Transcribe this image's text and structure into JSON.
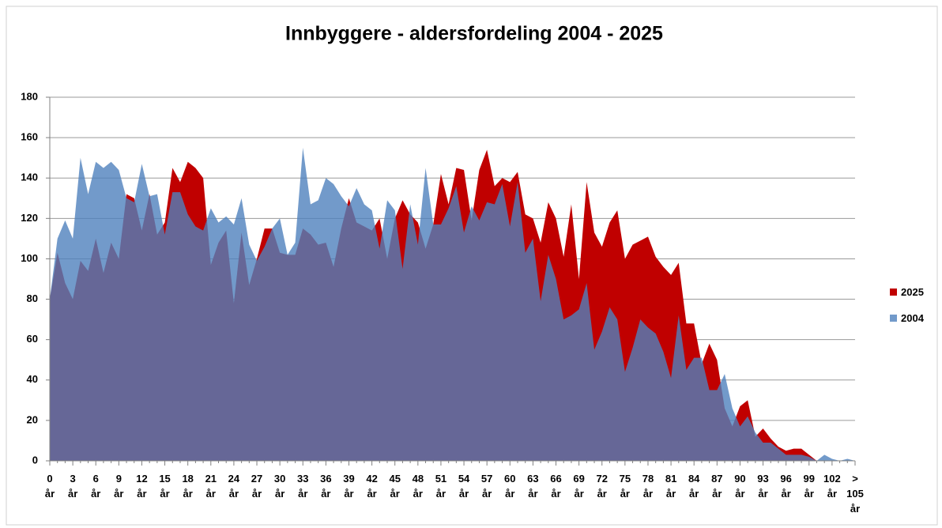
{
  "chart_data": {
    "type": "area",
    "title": "Innbyggere - aldersfordeling 2004 - 2025",
    "categories": [
      "0 år",
      null,
      null,
      "3 år",
      null,
      null,
      "6 år",
      null,
      null,
      "9 år",
      null,
      null,
      "12 år",
      null,
      null,
      "15 år",
      null,
      null,
      "18 år",
      null,
      null,
      "21 år",
      null,
      null,
      "24 år",
      null,
      null,
      "27 år",
      null,
      null,
      "30 år",
      null,
      null,
      "33 år",
      null,
      null,
      "36 år",
      null,
      null,
      "39 år",
      null,
      null,
      "42 år",
      null,
      null,
      "45 år",
      null,
      null,
      "48 år",
      null,
      null,
      "51 år",
      null,
      null,
      "54 år",
      null,
      null,
      "57 år",
      null,
      null,
      "60 år",
      null,
      null,
      "63 år",
      null,
      null,
      "66 år",
      null,
      null,
      "69 år",
      null,
      null,
      "72 år",
      null,
      null,
      "75 år",
      null,
      null,
      "78 år",
      null,
      null,
      "81 år",
      null,
      null,
      "84 år",
      null,
      null,
      "87 år",
      null,
      null,
      "90 år",
      null,
      null,
      "93 år",
      null,
      null,
      "96 år",
      null,
      null,
      "99 år",
      null,
      null,
      "102 år",
      null,
      null,
      "> 105 år"
    ],
    "series": [
      {
        "name": "2025",
        "color": "#c00000",
        "values": [
          80,
          103,
          88,
          80,
          99,
          94,
          110,
          93,
          108,
          100,
          132,
          130,
          114,
          132,
          112,
          118,
          145,
          138,
          148,
          145,
          140,
          97,
          108,
          114,
          78,
          113,
          87,
          100,
          115,
          115,
          103,
          102,
          102,
          115,
          112,
          107,
          108,
          96,
          115,
          130,
          118,
          116,
          114,
          120,
          100,
          120,
          129,
          122,
          118,
          105,
          117,
          142,
          127,
          145,
          144,
          119,
          144,
          154,
          136,
          140,
          138,
          143,
          122,
          120,
          108,
          128,
          120,
          101,
          127,
          90,
          138,
          113,
          106,
          118,
          124,
          100,
          107,
          109,
          111,
          101,
          96,
          92,
          98,
          68,
          68,
          48,
          58,
          50,
          26,
          17,
          27,
          30,
          12,
          16,
          11,
          7,
          5,
          6,
          6,
          3,
          0,
          0,
          0,
          0,
          0,
          0
        ]
      },
      {
        "name": "2004",
        "color": "#4f81bd",
        "values": [
          80,
          110,
          119,
          110,
          150,
          132,
          148,
          145,
          148,
          144,
          130,
          128,
          147,
          131,
          132,
          112,
          133,
          133,
          122,
          116,
          114,
          125,
          118,
          121,
          117,
          130,
          107,
          99,
          106,
          115,
          120,
          102,
          108,
          155,
          127,
          129,
          140,
          137,
          131,
          126,
          135,
          127,
          124,
          105,
          129,
          124,
          95,
          127,
          107,
          145,
          117,
          117,
          125,
          136,
          113,
          126,
          119,
          128,
          127,
          137,
          116,
          138,
          103,
          110,
          79,
          102,
          90,
          70,
          72,
          75,
          88,
          55,
          64,
          76,
          70,
          44,
          56,
          70,
          66,
          63,
          54,
          41,
          72,
          45,
          51,
          51,
          35,
          35,
          43,
          26,
          17,
          22,
          14,
          9,
          9,
          6,
          3,
          3,
          3,
          2,
          0,
          3,
          1,
          0,
          1,
          0
        ]
      }
    ],
    "ylim": [
      0,
      180
    ],
    "yticks": [
      0,
      20,
      40,
      60,
      80,
      100,
      120,
      140,
      160,
      180
    ],
    "grid": true,
    "legend": "right"
  }
}
